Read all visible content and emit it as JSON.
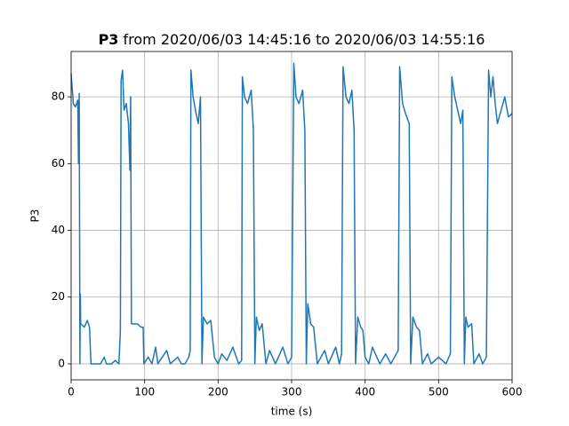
{
  "chart_data": {
    "type": "line",
    "title_parts": [
      "P3",
      "from 2020/06/03 14:45:16 to 2020/06/03 14:55:16"
    ],
    "xlabel": "time (s)",
    "ylabel": "P3",
    "xlim": [
      0,
      600
    ],
    "ylim": [
      -4.8,
      93.6
    ],
    "xticks": [
      0,
      100,
      200,
      300,
      400,
      500,
      600
    ],
    "yticks": [
      0,
      20,
      40,
      60,
      80
    ],
    "grid": true,
    "x": [
      0,
      3,
      6,
      9,
      10,
      11,
      12,
      12.5,
      13,
      18,
      22,
      25,
      27,
      40,
      45,
      48,
      55,
      60,
      65,
      67,
      68,
      70,
      72,
      75,
      78,
      80,
      81,
      82,
      90,
      95,
      98,
      99,
      105,
      110,
      115,
      118,
      130,
      135,
      145,
      150,
      155,
      160,
      162,
      163,
      166,
      170,
      173,
      176,
      178,
      180,
      185,
      190,
      195,
      200,
      205,
      212,
      220,
      228,
      232,
      233,
      236,
      240,
      245,
      248,
      250,
      252,
      256,
      260,
      265,
      270,
      278,
      288,
      295,
      300,
      303,
      306,
      310,
      315,
      318,
      320,
      322,
      326,
      330,
      335,
      345,
      350,
      360,
      365,
      368,
      370,
      374,
      378,
      382,
      385,
      387,
      390,
      394,
      397,
      400,
      405,
      410,
      420,
      428,
      435,
      445,
      447,
      451,
      455,
      460,
      462,
      465,
      470,
      474,
      478,
      485,
      490,
      500,
      510,
      516,
      518,
      522,
      526,
      530,
      533,
      535,
      537,
      540,
      545,
      548,
      555,
      560,
      565,
      568,
      571,
      574,
      577,
      580,
      585,
      590,
      595,
      600
    ],
    "series": [
      {
        "name": "P3",
        "color": "#1f77b4",
        "values": [
          87,
          78,
          77,
          79,
          60,
          81,
          0,
          21,
          12,
          11,
          13,
          11,
          0,
          0,
          2,
          0,
          0,
          1,
          0,
          10,
          85,
          88,
          76,
          78,
          72,
          58,
          80,
          12,
          12,
          11,
          11,
          0,
          2,
          0,
          5,
          0,
          4,
          0,
          2,
          0,
          0,
          2,
          4,
          88,
          80,
          75,
          72,
          80,
          0,
          14,
          12,
          13,
          2,
          0,
          3,
          1,
          5,
          0,
          1,
          86,
          80,
          78,
          82,
          70,
          0,
          14,
          10,
          12,
          0,
          4,
          0,
          5,
          0,
          2,
          90,
          80,
          78,
          82,
          70,
          0,
          18,
          12,
          11,
          0,
          4,
          0,
          5,
          0,
          3,
          89,
          80,
          78,
          82,
          70,
          0,
          14,
          11,
          10,
          2,
          0,
          5,
          0,
          3,
          0,
          4,
          89,
          78,
          75,
          72,
          0,
          14,
          11,
          10,
          0,
          3,
          0,
          2,
          0,
          3,
          86,
          80,
          76,
          72,
          76,
          0,
          14,
          11,
          12,
          0,
          3,
          0,
          2,
          88,
          80,
          86,
          78,
          72,
          76,
          80,
          74,
          75
        ]
      }
    ]
  }
}
